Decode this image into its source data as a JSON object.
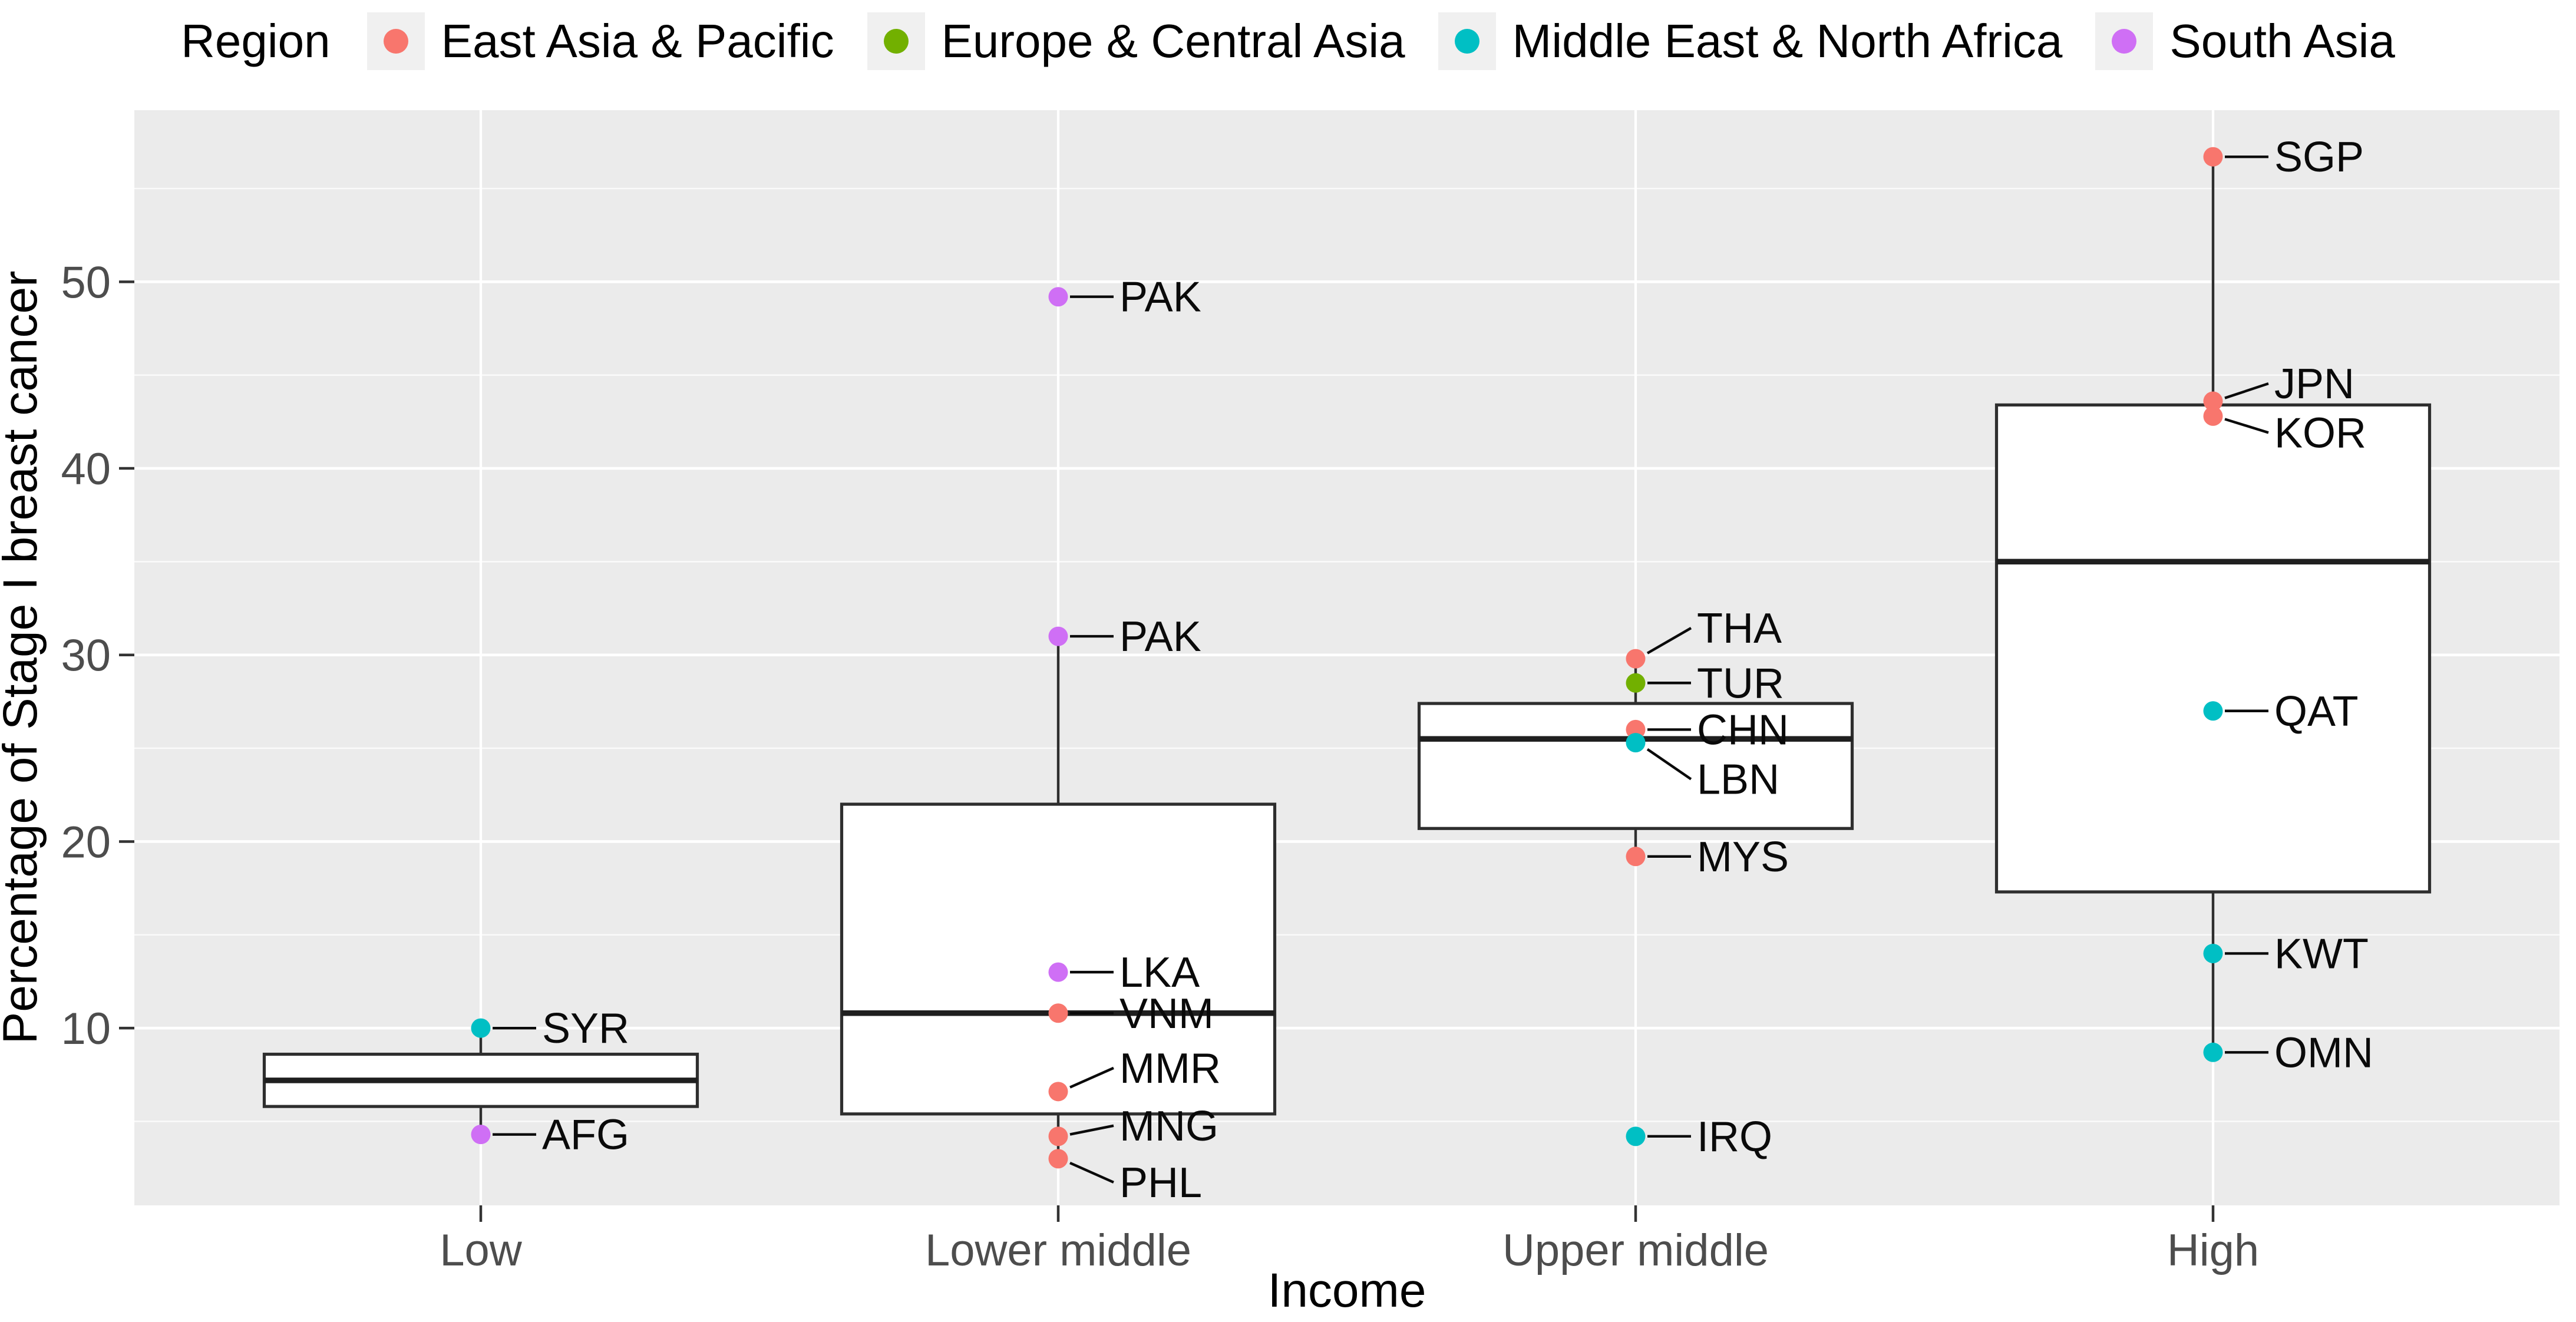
{
  "legend": {
    "title": "Region",
    "items": [
      {
        "label": "East Asia & Pacific",
        "color": "#F8766D"
      },
      {
        "label": "Europe & Central Asia",
        "color": "#72B000"
      },
      {
        "label": "Middle East & North Africa",
        "color": "#00BFC4"
      },
      {
        "label": "South Asia",
        "color": "#CF6FF5"
      }
    ]
  },
  "chart_data": {
    "type": "boxplot",
    "title": "",
    "xlabel": "Income",
    "ylabel": "Percentage of Stage I breast cancer",
    "ylim": [
      0.5,
      59.2
    ],
    "yticks": [
      10,
      20,
      30,
      40,
      50
    ],
    "yticks_minor": [
      5,
      15,
      25,
      35,
      45,
      55
    ],
    "grid": "on",
    "legend_position": "top",
    "categories": [
      "Low",
      "Lower middle",
      "Upper middle",
      "High"
    ],
    "boxes": [
      {
        "category": "Low",
        "q1": 5.8,
        "median": 7.2,
        "q3": 8.6,
        "whisker_low": 4.3,
        "whisker_high": 10.0
      },
      {
        "category": "Lower middle",
        "q1": 5.4,
        "median": 10.8,
        "q3": 22.0,
        "whisker_low": 3.0,
        "whisker_high": 31.0
      },
      {
        "category": "Upper middle",
        "q1": 20.7,
        "median": 25.5,
        "q3": 27.4,
        "whisker_low": 19.2,
        "whisker_high": 29.8
      },
      {
        "category": "High",
        "q1": 17.3,
        "median": 35.0,
        "q3": 43.4,
        "whisker_low": 8.7,
        "whisker_high": 56.7
      }
    ],
    "points": [
      {
        "category": "Low",
        "code": "SYR",
        "value": 10.0,
        "region": "Middle East & North Africa",
        "label_dy": 0
      },
      {
        "category": "Low",
        "code": "AFG",
        "value": 4.3,
        "region": "South Asia",
        "label_dy": 0
      },
      {
        "category": "Lower middle",
        "code": "PAK",
        "value": 49.2,
        "region": "South Asia",
        "label_dy": 0
      },
      {
        "category": "Lower middle",
        "code": "PAK",
        "value": 31.0,
        "region": "South Asia",
        "label_dy": 0
      },
      {
        "category": "Lower middle",
        "code": "LKA",
        "value": 13.0,
        "region": "South Asia",
        "label_dy": 0
      },
      {
        "category": "Lower middle",
        "code": "VNM",
        "value": 10.8,
        "region": "East Asia & Pacific",
        "label_dy": 0
      },
      {
        "category": "Lower middle",
        "code": "MMR",
        "value": 6.6,
        "region": "East Asia & Pacific",
        "label_dy": -40
      },
      {
        "category": "Lower middle",
        "code": "MNG",
        "value": 4.2,
        "region": "East Asia & Pacific",
        "label_dy": -18
      },
      {
        "category": "Lower middle",
        "code": "PHL",
        "value": 3.0,
        "region": "East Asia & Pacific",
        "label_dy": 40
      },
      {
        "category": "Upper middle",
        "code": "THA",
        "value": 29.8,
        "region": "East Asia & Pacific",
        "label_dy": -52
      },
      {
        "category": "Upper middle",
        "code": "TUR",
        "value": 28.5,
        "region": "Europe & Central Asia",
        "label_dy": 0
      },
      {
        "category": "Upper middle",
        "code": "CHN",
        "value": 26.0,
        "region": "East Asia & Pacific",
        "label_dy": 0
      },
      {
        "category": "Upper middle",
        "code": "LBN",
        "value": 25.3,
        "region": "Middle East & North Africa",
        "label_dy": 62
      },
      {
        "category": "Upper middle",
        "code": "MYS",
        "value": 19.2,
        "region": "East Asia & Pacific",
        "label_dy": 0
      },
      {
        "category": "Upper middle",
        "code": "IRQ",
        "value": 4.2,
        "region": "Middle East & North Africa",
        "label_dy": 0
      },
      {
        "category": "High",
        "code": "SGP",
        "value": 56.7,
        "region": "East Asia & Pacific",
        "label_dy": 0
      },
      {
        "category": "High",
        "code": "JPN",
        "value": 43.6,
        "region": "East Asia & Pacific",
        "label_dy": -30
      },
      {
        "category": "High",
        "code": "KOR",
        "value": 42.8,
        "region": "East Asia & Pacific",
        "label_dy": 28
      },
      {
        "category": "High",
        "code": "QAT",
        "value": 27.0,
        "region": "Middle East & North Africa",
        "label_dy": 0
      },
      {
        "category": "High",
        "code": "KWT",
        "value": 14.0,
        "region": "Middle East & North Africa",
        "label_dy": 0
      },
      {
        "category": "High",
        "code": "OMN",
        "value": 8.7,
        "region": "Middle East & North Africa",
        "label_dy": 0
      }
    ],
    "style": {
      "panel_bg": "#EBEBEB",
      "grid_color": "#FFFFFF",
      "axis_text_color": "#4D4D4D",
      "box_stroke": "#2E2E2E",
      "median_stroke": "#1F1F1F",
      "tick_color": "#333333"
    }
  }
}
